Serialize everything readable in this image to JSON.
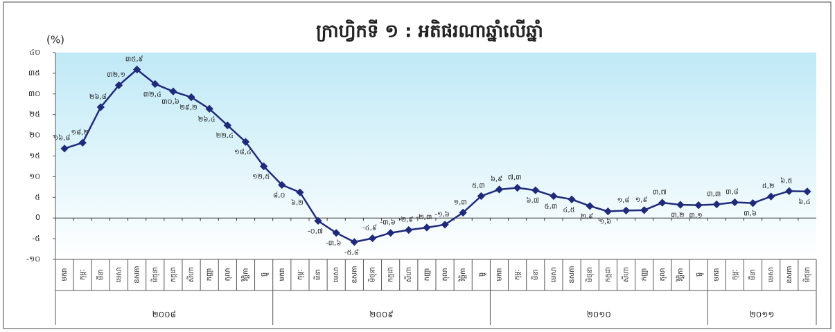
{
  "chart_data": {
    "type": "line",
    "title": "ក្រាហ្វិកទី ១ : អតិផរណាឆ្នាំលើឆ្នាំ",
    "y_label": "(%)",
    "categories": [
      "មករា",
      "កុម្ភៈ",
      "មីនា",
      "មេសា",
      "ឧសភា",
      "មិថុនា",
      "កក្កដា",
      "សីហា",
      "កញ្ញា",
      "តុលា",
      "វិច្ឆិកា",
      "ធ្នូ",
      "មករា",
      "កុម្ភៈ",
      "មីនា",
      "មេសា",
      "ឧសភា",
      "មិថុនា",
      "កក្កដា",
      "សីហា",
      "កញ្ញា",
      "តុលា",
      "វិច្ឆិកា",
      "ធ្នូ",
      "មករា",
      "កុម្ភៈ",
      "មីនា",
      "មេសា",
      "ឧសភា",
      "មិថុនា",
      "កក្កដា",
      "សីហា",
      "កញ្ញា",
      "តុលា",
      "វិច្ឆិកា",
      "ធ្នូ",
      "មករា",
      "កុម្ភៈ",
      "មីនា",
      "មេសា",
      "ឧសភា",
      "មិថុនា"
    ],
    "x_groups": [
      "២០០៨",
      "២០០៩",
      "២០១០",
      "២០១១"
    ],
    "series": [
      {
        "name": "អតិផរណា",
        "color": "#1f2a7a",
        "values": [
          16.8,
          18.2,
          26.8,
          32.1,
          35.9,
          32.4,
          30.6,
          29.2,
          26.4,
          22.4,
          18.4,
          12.5,
          8.0,
          6.2,
          -0.7,
          -3.6,
          -5.8,
          -4.9,
          -3.6,
          -2.9,
          -2.3,
          -1.6,
          1.3,
          5.3,
          6.9,
          7.3,
          6.7,
          5.3,
          4.5,
          2.9,
          1.6,
          1.8,
          1.9,
          3.7,
          3.2,
          3.1,
          3.3,
          3.8,
          3.6,
          5.2,
          6.5,
          6.4
        ],
        "value_labels": [
          "១៦,៨",
          "១៨,២",
          "២៦,៨",
          "៣២,១",
          "៣៥,៩",
          "៣២,៤",
          "៣០,៦",
          "២៩,២",
          "២៦,៤",
          "២២,៤",
          "១៨,៤",
          "១២,៥",
          "៨,០",
          "៦,២",
          "-០,៧",
          "-៣,៦",
          "-៥,៨",
          "-៤,៩",
          "-៣,៦",
          "-២,៩",
          "-២,៣",
          "-១,៦",
          "១,៣",
          "៥,៣",
          "៦,៩",
          "៧,៣",
          "៦,៧",
          "៥,៣",
          "៤,៥",
          "២,៩",
          "១,៦",
          "១,៨",
          "១,៩",
          "៣,៧",
          "៣,២",
          "៣,១",
          "៣,៣",
          "៣,៨",
          "៣,៦",
          "៥,២",
          "៦,៥",
          "៦,៤"
        ]
      }
    ],
    "ylim": [
      -10,
      40
    ],
    "yticks": [
      {
        "value": -10,
        "label": "-១០"
      },
      {
        "value": -5,
        "label": "-៥"
      },
      0,
      {
        "value": 5,
        "label": "៥"
      },
      {
        "value": 10,
        "label": "១០"
      },
      {
        "value": 15,
        "label": "១៥"
      },
      {
        "value": 20,
        "label": "២០"
      },
      {
        "value": 25,
        "label": "២៥"
      },
      {
        "value": 30,
        "label": "៣០"
      },
      {
        "value": 35,
        "label": "៣៥"
      },
      {
        "value": 40,
        "label": "៤០"
      }
    ],
    "grid": false
  }
}
